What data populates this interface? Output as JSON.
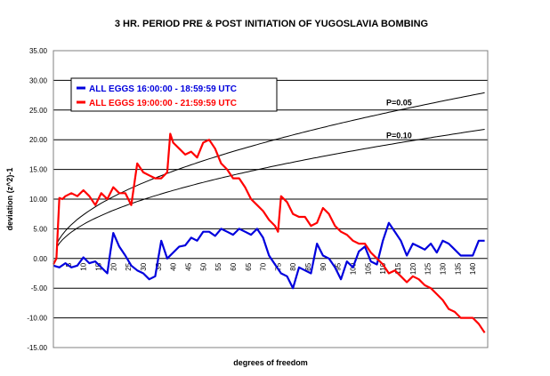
{
  "chart_data": {
    "type": "line",
    "title": "3 HR. PERIOD PRE & POST INITIATION OF YUGOSLAVIA BOMBING",
    "xlabel": "degrees of freedom",
    "ylabel": "deviation (z^2)-1",
    "xlim": [
      0,
      145
    ],
    "ylim": [
      -15,
      35
    ],
    "y_ticks": [
      "35.00",
      "30.00",
      "25.00",
      "20.00",
      "15.00",
      "10.00",
      "5.00",
      "0.00",
      "-5.00",
      "-10.00",
      "-15.00"
    ],
    "y_tick_values": [
      35,
      30,
      25,
      20,
      15,
      10,
      5,
      0,
      -5,
      -10,
      -15
    ],
    "x_ticks": [
      "5",
      "10",
      "15",
      "20",
      "25",
      "30",
      "35",
      "40",
      "45",
      "50",
      "55",
      "60",
      "65",
      "70",
      "75",
      "80",
      "85",
      "90",
      "95",
      "100",
      "105",
      "110",
      "115",
      "120",
      "125",
      "130",
      "135",
      "140"
    ],
    "x_tick_values": [
      5,
      10,
      15,
      20,
      25,
      30,
      35,
      40,
      45,
      50,
      55,
      60,
      65,
      70,
      75,
      80,
      85,
      90,
      95,
      100,
      105,
      110,
      115,
      120,
      125,
      130,
      135,
      140
    ],
    "grid": "horizontal",
    "legend_position": "top-left",
    "colors": {
      "blue": "#0000dd",
      "red": "#ff0000",
      "reference": "#000000"
    },
    "series": [
      {
        "name": "ALL EGGS 16:00:00 - 18:59:59 UTC",
        "color": "#0000dd",
        "x": [
          0,
          2,
          4,
          6,
          8,
          10,
          12,
          14,
          16,
          18,
          19,
          20,
          22,
          24,
          26,
          28,
          30,
          32,
          34,
          36,
          38,
          40,
          42,
          44,
          46,
          48,
          50,
          52,
          54,
          56,
          58,
          60,
          62,
          64,
          66,
          68,
          70,
          72,
          74,
          76,
          78,
          80,
          82,
          84,
          86,
          88,
          90,
          92,
          94,
          96,
          98,
          100,
          102,
          104,
          106,
          108,
          110,
          112,
          114,
          116,
          118,
          120,
          122,
          124,
          126,
          128,
          130,
          132,
          134,
          136,
          138,
          140,
          142,
          144
        ],
        "values": [
          -1.2,
          -1.5,
          -0.8,
          -1.5,
          -1.2,
          0.2,
          -0.8,
          -0.5,
          -1.5,
          -2.5,
          1.0,
          4.3,
          2.0,
          0.5,
          -1.2,
          -2.0,
          -2.5,
          -3.5,
          -3.0,
          3.0,
          0.0,
          1.0,
          2.0,
          2.2,
          3.5,
          3.0,
          4.5,
          4.5,
          3.8,
          5.0,
          4.5,
          4.0,
          5.0,
          4.5,
          4.0,
          5.0,
          3.5,
          0.5,
          -1.0,
          -2.5,
          -3.0,
          -5.0,
          -1.5,
          -2.0,
          -2.5,
          2.5,
          0.5,
          0.0,
          -1.5,
          -3.5,
          -0.5,
          -1.5,
          1.2,
          2.0,
          -0.5,
          -1.0,
          3.0,
          6.0,
          4.5,
          3.0,
          0.5,
          2.5,
          2.0,
          1.5,
          2.5,
          1.0,
          3.0,
          2.5,
          1.5,
          0.5,
          0.5,
          0.5,
          3.0,
          3.0
        ]
      },
      {
        "name": "ALL EGGS 19:00:00 - 21:59:59 UTC",
        "color": "#ff0000",
        "x": [
          0,
          1,
          2,
          3,
          4,
          6,
          8,
          10,
          12,
          14,
          16,
          18,
          20,
          22,
          24,
          26,
          28,
          30,
          32,
          34,
          36,
          38,
          39,
          40,
          42,
          44,
          46,
          48,
          50,
          52,
          54,
          56,
          58,
          60,
          62,
          64,
          66,
          68,
          70,
          72,
          74,
          75,
          76,
          78,
          80,
          82,
          84,
          86,
          88,
          90,
          92,
          94,
          96,
          98,
          100,
          102,
          104,
          106,
          108,
          110,
          112,
          114,
          116,
          118,
          120,
          122,
          124,
          126,
          128,
          130,
          132,
          134,
          136,
          138,
          140,
          142,
          144
        ],
        "values": [
          -1.0,
          0.0,
          10.2,
          10.0,
          10.5,
          11.0,
          10.5,
          11.5,
          10.5,
          9.0,
          11.0,
          10.0,
          12.0,
          11.0,
          11.0,
          9.0,
          16.0,
          14.5,
          14.0,
          13.5,
          13.5,
          14.5,
          21.0,
          19.5,
          18.5,
          17.5,
          18.0,
          17.0,
          19.5,
          20.0,
          18.5,
          16.0,
          15.0,
          13.5,
          13.5,
          12.0,
          10.0,
          9.0,
          8.0,
          6.5,
          5.5,
          4.5,
          10.5,
          9.5,
          7.5,
          7.0,
          7.0,
          5.5,
          6.0,
          8.5,
          7.5,
          5.5,
          4.5,
          4.0,
          3.0,
          2.5,
          2.5,
          1.0,
          0.0,
          -1.0,
          -2.5,
          -2.0,
          -3.0,
          -4.0,
          -3.0,
          -3.5,
          -4.5,
          -5.0,
          -6.0,
          -7.0,
          -8.5,
          -9.0,
          -10.0,
          -10.0,
          -10.0,
          -11.0,
          -12.5
        ]
      }
    ],
    "reference_curves": [
      {
        "label": "P=0.05",
        "z": 1.645
      },
      {
        "label": "P=0.10",
        "z": 1.282
      }
    ]
  }
}
